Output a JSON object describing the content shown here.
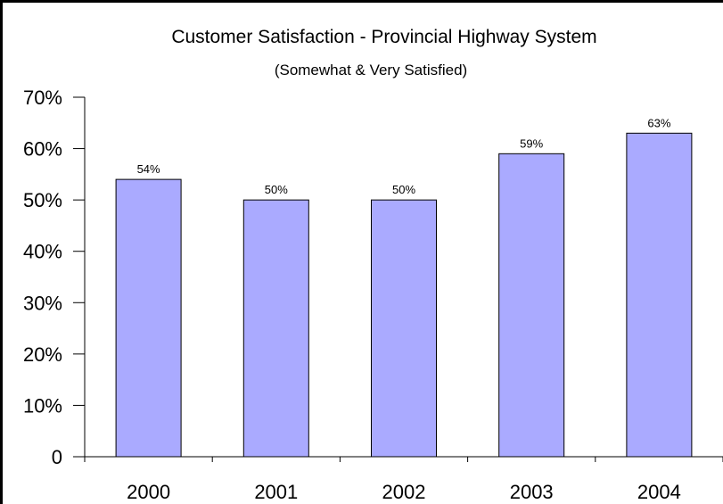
{
  "chart_data": {
    "type": "bar",
    "title": "Customer Satisfaction - Provincial Highway System",
    "subtitle": "(Somewhat & Very Satisfied)",
    "xlabel": "",
    "ylabel": "",
    "categories": [
      "2000",
      "2001",
      "2002",
      "2003",
      "2004"
    ],
    "values": [
      54,
      50,
      50,
      59,
      63
    ],
    "data_labels": [
      "54%",
      "50%",
      "50%",
      "59%",
      "63%"
    ],
    "ylim": [
      0,
      70
    ],
    "yticks": [
      0,
      10,
      20,
      30,
      40,
      50,
      60,
      70
    ],
    "ytick_labels": [
      "0",
      "10%",
      "20%",
      "30%",
      "40%",
      "50%",
      "60%",
      "70%"
    ],
    "grid": false,
    "legend": "none",
    "colors": {
      "bar_fill": "#aaaaff",
      "bar_stroke": "#000000",
      "axis": "#000000",
      "background": "#ffffff"
    }
  }
}
